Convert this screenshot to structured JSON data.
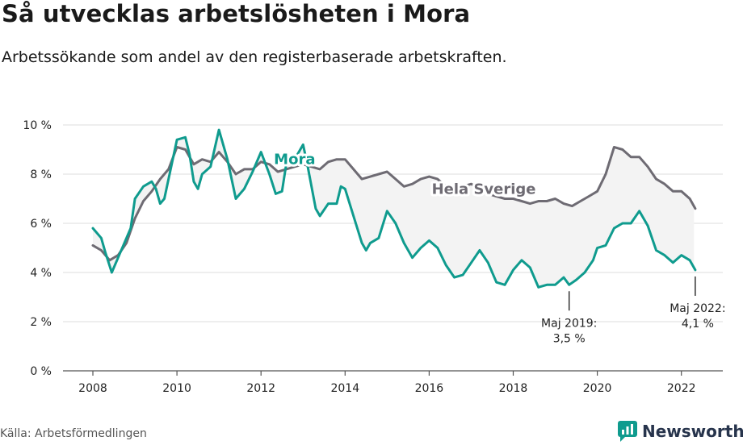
{
  "title": "Så utvecklas arbetslösheten i Mora",
  "subtitle": "Arbetssökande som andel av den registerbaserade arbetskraften.",
  "source": "Källa: Arbetsförmedlingen",
  "brand": "Newsworthy",
  "colors": {
    "mora": "#0f9b8e",
    "sverige": "#6e6b73",
    "band": "#f3f3f3",
    "grid": "#dcdcdc",
    "brand": "#27344c"
  },
  "chart_data": {
    "type": "line",
    "title": "Så utvecklas arbetslösheten i Mora",
    "subtitle": "Arbetssökande som andel av den registerbaserade arbetskraften.",
    "ylim": [
      0,
      10
    ],
    "xlim": [
      2007.4,
      2023.0
    ],
    "y_ticks": [
      {
        "value": 0,
        "label": "0 %"
      },
      {
        "value": 2,
        "label": "2 %"
      },
      {
        "value": 4,
        "label": "4 %"
      },
      {
        "value": 6,
        "label": "6 %"
      },
      {
        "value": 8,
        "label": "8 %"
      },
      {
        "value": 10,
        "label": "10 %"
      }
    ],
    "x_ticks": [
      {
        "value": 2008,
        "label": "2008"
      },
      {
        "value": 2010,
        "label": "2010"
      },
      {
        "value": 2012,
        "label": "2012"
      },
      {
        "value": 2014,
        "label": "2014"
      },
      {
        "value": 2016,
        "label": "2016"
      },
      {
        "value": 2018,
        "label": "2018"
      },
      {
        "value": 2020,
        "label": "2020"
      },
      {
        "value": 2022,
        "label": "2022"
      }
    ],
    "grid": true,
    "series": [
      {
        "name": "Hela Sverige",
        "label_at": [
          2017.3,
          7.4
        ],
        "points": [
          [
            2008.0,
            5.1
          ],
          [
            2008.2,
            4.9
          ],
          [
            2008.4,
            4.5
          ],
          [
            2008.6,
            4.7
          ],
          [
            2008.8,
            5.2
          ],
          [
            2009.0,
            6.2
          ],
          [
            2009.2,
            6.9
          ],
          [
            2009.4,
            7.3
          ],
          [
            2009.6,
            7.8
          ],
          [
            2009.8,
            8.2
          ],
          [
            2010.0,
            9.1
          ],
          [
            2010.2,
            9.0
          ],
          [
            2010.4,
            8.4
          ],
          [
            2010.6,
            8.6
          ],
          [
            2010.8,
            8.5
          ],
          [
            2011.0,
            8.9
          ],
          [
            2011.2,
            8.5
          ],
          [
            2011.4,
            8.0
          ],
          [
            2011.6,
            8.2
          ],
          [
            2011.8,
            8.2
          ],
          [
            2012.0,
            8.5
          ],
          [
            2012.2,
            8.4
          ],
          [
            2012.4,
            8.1
          ],
          [
            2012.6,
            8.2
          ],
          [
            2012.8,
            8.3
          ],
          [
            2013.0,
            8.4
          ],
          [
            2013.2,
            8.3
          ],
          [
            2013.4,
            8.2
          ],
          [
            2013.6,
            8.5
          ],
          [
            2013.8,
            8.6
          ],
          [
            2014.0,
            8.6
          ],
          [
            2014.2,
            8.2
          ],
          [
            2014.4,
            7.8
          ],
          [
            2014.6,
            7.9
          ],
          [
            2014.8,
            8.0
          ],
          [
            2015.0,
            8.1
          ],
          [
            2015.2,
            7.8
          ],
          [
            2015.4,
            7.5
          ],
          [
            2015.6,
            7.6
          ],
          [
            2015.8,
            7.8
          ],
          [
            2016.0,
            7.9
          ],
          [
            2016.2,
            7.8
          ],
          [
            2016.4,
            7.5
          ],
          [
            2016.6,
            7.4
          ],
          [
            2016.8,
            7.5
          ],
          [
            2017.0,
            7.6
          ],
          [
            2017.2,
            7.4
          ],
          [
            2017.4,
            7.2
          ],
          [
            2017.6,
            7.1
          ],
          [
            2017.8,
            7.0
          ],
          [
            2018.0,
            7.0
          ],
          [
            2018.2,
            6.9
          ],
          [
            2018.4,
            6.8
          ],
          [
            2018.6,
            6.9
          ],
          [
            2018.8,
            6.9
          ],
          [
            2019.0,
            7.0
          ],
          [
            2019.2,
            6.8
          ],
          [
            2019.4,
            6.7
          ],
          [
            2019.6,
            6.9
          ],
          [
            2019.8,
            7.1
          ],
          [
            2020.0,
            7.3
          ],
          [
            2020.2,
            8.0
          ],
          [
            2020.4,
            9.1
          ],
          [
            2020.6,
            9.0
          ],
          [
            2020.8,
            8.7
          ],
          [
            2021.0,
            8.7
          ],
          [
            2021.2,
            8.3
          ],
          [
            2021.4,
            7.8
          ],
          [
            2021.6,
            7.6
          ],
          [
            2021.8,
            7.3
          ],
          [
            2022.0,
            7.3
          ],
          [
            2022.2,
            7.0
          ],
          [
            2022.33,
            6.6
          ]
        ]
      },
      {
        "name": "Mora",
        "label_at": [
          2012.8,
          8.6
        ],
        "points": [
          [
            2008.0,
            5.8
          ],
          [
            2008.2,
            5.4
          ],
          [
            2008.3,
            4.8
          ],
          [
            2008.45,
            4.0
          ],
          [
            2008.6,
            4.6
          ],
          [
            2008.8,
            5.4
          ],
          [
            2008.9,
            5.8
          ],
          [
            2009.0,
            7.0
          ],
          [
            2009.2,
            7.5
          ],
          [
            2009.4,
            7.7
          ],
          [
            2009.5,
            7.4
          ],
          [
            2009.6,
            6.8
          ],
          [
            2009.7,
            7.0
          ],
          [
            2009.8,
            7.8
          ],
          [
            2010.0,
            9.4
          ],
          [
            2010.2,
            9.5
          ],
          [
            2010.3,
            8.8
          ],
          [
            2010.4,
            7.7
          ],
          [
            2010.5,
            7.4
          ],
          [
            2010.6,
            8.0
          ],
          [
            2010.8,
            8.3
          ],
          [
            2011.0,
            9.8
          ],
          [
            2011.2,
            8.6
          ],
          [
            2011.4,
            7.0
          ],
          [
            2011.5,
            7.2
          ],
          [
            2011.6,
            7.4
          ],
          [
            2011.8,
            8.1
          ],
          [
            2012.0,
            8.9
          ],
          [
            2012.2,
            8.0
          ],
          [
            2012.35,
            7.2
          ],
          [
            2012.5,
            7.3
          ],
          [
            2012.6,
            8.4
          ],
          [
            2012.8,
            8.6
          ],
          [
            2013.0,
            9.2
          ],
          [
            2013.1,
            8.4
          ],
          [
            2013.3,
            6.6
          ],
          [
            2013.4,
            6.3
          ],
          [
            2013.6,
            6.8
          ],
          [
            2013.8,
            6.8
          ],
          [
            2013.9,
            7.5
          ],
          [
            2014.0,
            7.4
          ],
          [
            2014.2,
            6.3
          ],
          [
            2014.4,
            5.2
          ],
          [
            2014.5,
            4.9
          ],
          [
            2014.6,
            5.2
          ],
          [
            2014.8,
            5.4
          ],
          [
            2015.0,
            6.5
          ],
          [
            2015.2,
            6.0
          ],
          [
            2015.4,
            5.2
          ],
          [
            2015.6,
            4.6
          ],
          [
            2015.8,
            5.0
          ],
          [
            2016.0,
            5.3
          ],
          [
            2016.2,
            5.0
          ],
          [
            2016.4,
            4.3
          ],
          [
            2016.6,
            3.8
          ],
          [
            2016.8,
            3.9
          ],
          [
            2017.0,
            4.4
          ],
          [
            2017.2,
            4.9
          ],
          [
            2017.4,
            4.4
          ],
          [
            2017.6,
            3.6
          ],
          [
            2017.8,
            3.5
          ],
          [
            2018.0,
            4.1
          ],
          [
            2018.2,
            4.5
          ],
          [
            2018.4,
            4.2
          ],
          [
            2018.6,
            3.4
          ],
          [
            2018.8,
            3.5
          ],
          [
            2019.0,
            3.5
          ],
          [
            2019.2,
            3.8
          ],
          [
            2019.33,
            3.5
          ],
          [
            2019.5,
            3.7
          ],
          [
            2019.7,
            4.0
          ],
          [
            2019.9,
            4.5
          ],
          [
            2020.0,
            5.0
          ],
          [
            2020.2,
            5.1
          ],
          [
            2020.4,
            5.8
          ],
          [
            2020.6,
            6.0
          ],
          [
            2020.8,
            6.0
          ],
          [
            2021.0,
            6.5
          ],
          [
            2021.2,
            5.9
          ],
          [
            2021.4,
            4.9
          ],
          [
            2021.6,
            4.7
          ],
          [
            2021.8,
            4.4
          ],
          [
            2022.0,
            4.7
          ],
          [
            2022.2,
            4.5
          ],
          [
            2022.33,
            4.1
          ]
        ]
      }
    ],
    "annotations": [
      {
        "x": 2019.33,
        "y": 3.5,
        "line1": "Maj 2019:",
        "line2": "3,5 %"
      },
      {
        "x": 2022.33,
        "y": 4.1,
        "line1": "Maj 2022:",
        "line2": "4,1 %"
      }
    ]
  }
}
